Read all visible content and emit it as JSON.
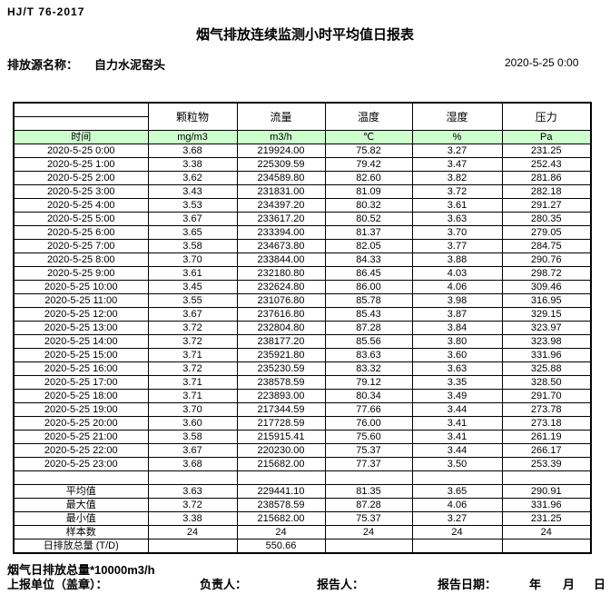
{
  "header": {
    "standard_no": "HJ/T  76-2017",
    "title": "烟气排放连续监测小时平均值日报表",
    "source_label": "排放源名称：",
    "source_name": "自力水泥窑头",
    "report_datetime": "2020-5-25 0:00"
  },
  "table": {
    "time_header": "时间",
    "columns": [
      {
        "label": "颗粒物",
        "unit": "mg/m3"
      },
      {
        "label": "流量",
        "unit": "m3/h"
      },
      {
        "label": "温度",
        "unit": "℃"
      },
      {
        "label": "湿度",
        "unit": "%"
      },
      {
        "label": "压力",
        "unit": "Pa"
      }
    ],
    "rows": [
      {
        "time": "2020-5-25 0:00",
        "values": [
          "3.68",
          "219924.00",
          "75.82",
          "3.27",
          "231.25"
        ]
      },
      {
        "time": "2020-5-25 1:00",
        "values": [
          "3.38",
          "225309.59",
          "79.42",
          "3.47",
          "252.43"
        ]
      },
      {
        "time": "2020-5-25 2:00",
        "values": [
          "3.62",
          "234589.80",
          "82.60",
          "3.82",
          "281.86"
        ]
      },
      {
        "time": "2020-5-25 3:00",
        "values": [
          "3.43",
          "231831.00",
          "81.09",
          "3.72",
          "282.18"
        ]
      },
      {
        "time": "2020-5-25 4:00",
        "values": [
          "3.53",
          "234397.20",
          "80.32",
          "3.61",
          "291.27"
        ]
      },
      {
        "time": "2020-5-25 5:00",
        "values": [
          "3.67",
          "233617.20",
          "80.52",
          "3.63",
          "280.35"
        ]
      },
      {
        "time": "2020-5-25 6:00",
        "values": [
          "3.65",
          "233394.00",
          "81.37",
          "3.70",
          "279.05"
        ]
      },
      {
        "time": "2020-5-25 7:00",
        "values": [
          "3.58",
          "234673.80",
          "82.05",
          "3.77",
          "284.75"
        ]
      },
      {
        "time": "2020-5-25 8:00",
        "values": [
          "3.70",
          "233844.00",
          "84.33",
          "3.88",
          "290.76"
        ]
      },
      {
        "time": "2020-5-25 9:00",
        "values": [
          "3.61",
          "232180.80",
          "86.45",
          "4.03",
          "298.72"
        ]
      },
      {
        "time": "2020-5-25 10:00",
        "values": [
          "3.45",
          "232624.80",
          "86.00",
          "4.06",
          "309.46"
        ]
      },
      {
        "time": "2020-5-25 11:00",
        "values": [
          "3.55",
          "231076.80",
          "85.78",
          "3.98",
          "316.95"
        ]
      },
      {
        "time": "2020-5-25 12:00",
        "values": [
          "3.67",
          "237616.80",
          "85.43",
          "3.87",
          "329.15"
        ]
      },
      {
        "time": "2020-5-25 13:00",
        "values": [
          "3.72",
          "232804.80",
          "87.28",
          "3.84",
          "323.97"
        ]
      },
      {
        "time": "2020-5-25 14:00",
        "values": [
          "3.72",
          "238177.20",
          "85.56",
          "3.80",
          "323.98"
        ]
      },
      {
        "time": "2020-5-25 15:00",
        "values": [
          "3.71",
          "235921.80",
          "83.63",
          "3.60",
          "331.96"
        ]
      },
      {
        "time": "2020-5-25 16:00",
        "values": [
          "3.72",
          "235230.59",
          "83.32",
          "3.63",
          "325.88"
        ]
      },
      {
        "time": "2020-5-25 17:00",
        "values": [
          "3.71",
          "238578.59",
          "79.12",
          "3.35",
          "328.50"
        ]
      },
      {
        "time": "2020-5-25 18:00",
        "values": [
          "3.71",
          "223893.00",
          "80.34",
          "3.49",
          "291.70"
        ]
      },
      {
        "time": "2020-5-25 19:00",
        "values": [
          "3.70",
          "217344.59",
          "77.66",
          "3.44",
          "273.78"
        ]
      },
      {
        "time": "2020-5-25 20:00",
        "values": [
          "3.60",
          "217728.59",
          "76.00",
          "3.41",
          "273.18"
        ]
      },
      {
        "time": "2020-5-25 21:00",
        "values": [
          "3.58",
          "215915.41",
          "75.60",
          "3.41",
          "261.19"
        ]
      },
      {
        "time": "2020-5-25 22:00",
        "values": [
          "3.67",
          "220230.00",
          "75.37",
          "3.44",
          "266.17"
        ]
      },
      {
        "time": "2020-5-25 23:00",
        "values": [
          "3.68",
          "215682.00",
          "77.37",
          "3.50",
          "253.39"
        ]
      }
    ],
    "summary": [
      {
        "label": "平均值",
        "values": [
          "3.63",
          "229441.10",
          "81.35",
          "3.65",
          "290.91"
        ]
      },
      {
        "label": "最大值",
        "values": [
          "3.72",
          "238578.59",
          "87.28",
          "4.06",
          "331.96"
        ]
      },
      {
        "label": "最小值",
        "values": [
          "3.38",
          "215682.00",
          "75.37",
          "3.27",
          "231.25"
        ]
      },
      {
        "label": "样本数",
        "values": [
          "24",
          "24",
          "24",
          "24",
          "24"
        ]
      },
      {
        "label": "日排放总量 (T/D)",
        "values": [
          "",
          "550.66",
          "",
          "",
          ""
        ]
      }
    ]
  },
  "footer": {
    "note": "烟气日排放总量*10000m3/h",
    "unit_label": "上报单位（盖章）：",
    "responsible_label": "负责人：",
    "reporter_label": "报告人：",
    "report_date_label": "报告日期：",
    "year": "年",
    "month": "月",
    "day": "日"
  },
  "colors": {
    "header_green": "#ccffcc",
    "border": "#000000"
  }
}
